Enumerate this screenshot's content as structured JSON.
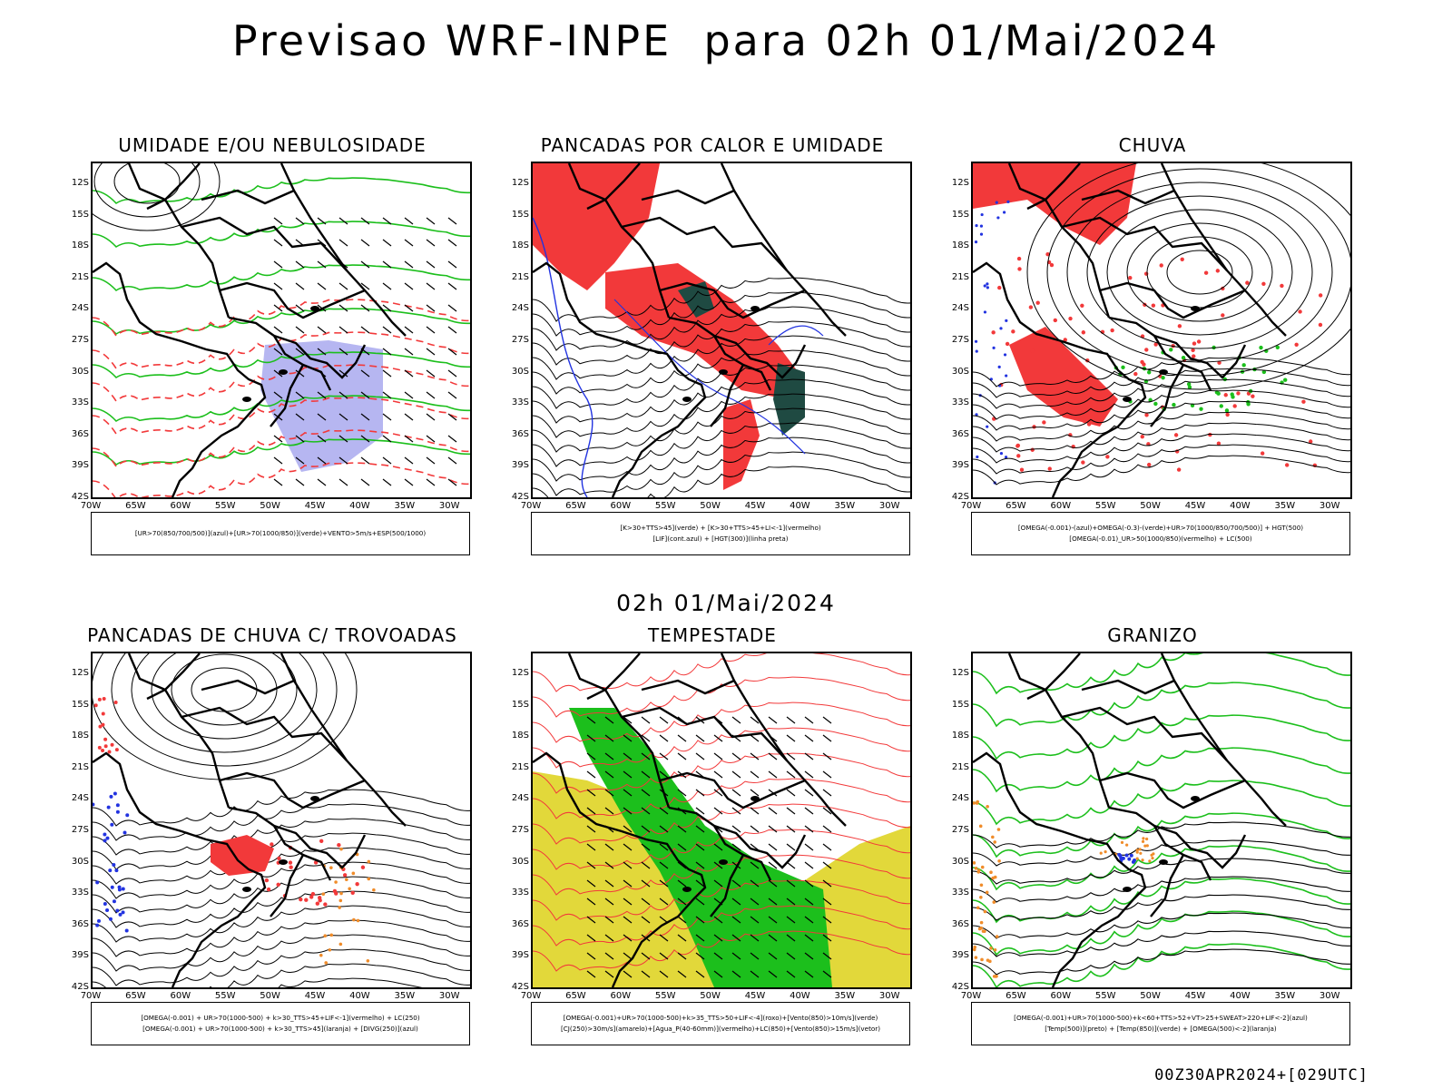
{
  "title": "Previsao WRF-INPE  para 02h 01/Mai/2024",
  "mid_title": "02h 01/Mai/2024",
  "footer": "00Z30APR2024+[029UTC]",
  "lat_labels": [
    "12S",
    "15S",
    "18S",
    "21S",
    "24S",
    "27S",
    "30S",
    "33S",
    "36S",
    "39S",
    "42S"
  ],
  "lon_labels": [
    "70W",
    "65W",
    "60W",
    "55W",
    "50W",
    "45W",
    "40W",
    "35W",
    "30W"
  ],
  "colors": {
    "red": "#f2393a",
    "green": "#1cbf1c",
    "blue": "#2233e0",
    "yellow": "#e2d83a",
    "dark_teal": "#1f4a42",
    "lavender": "#a9a9ee",
    "orange": "#f08c2a"
  },
  "panels": [
    {
      "title": "UMIDADE E/OU NEBULOSIDADE",
      "legend": [
        "[UR>70(850/700/500)](azul)+[UR>70(1000/850)](verde)+VENTO>5m/s+ESP(500/1000)"
      ]
    },
    {
      "title": "PANCADAS POR CALOR E UMIDADE",
      "legend": [
        "[K>30+TTS>45](verde) + [K>30+TTS>45+LI<-1](vermelho)",
        "[LIF](cont.azul) + [HGT(300)](linha preta)"
      ]
    },
    {
      "title": "CHUVA",
      "legend": [
        "[OMEGA(-0.001)-(azul)+OMEGA(-0.3)-(verde)+UR>70(1000/850/700/500)] + HGT(500)",
        "[OMEGA(-0.01)_UR>50(1000/850)(vermelho) + LC(500)"
      ]
    },
    {
      "title": "PANCADAS DE CHUVA C/ TROVOADAS",
      "legend": [
        "[OMEGA(-0.001) + UR>70(1000-500) + k>30_TTS>45+LIF<-1](vermelho) + LC(250)",
        "[OMEGA(-0.001) + UR>70(1000-500) + k>30_TTS>45](laranja) + [DIVG(250)](azul)"
      ]
    },
    {
      "title": "TEMPESTADE",
      "legend": [
        "[OMEGA(-0.001)+UR>70(1000-500)+k>35_TTS>50+LIF<-4](roxo)+[Vento(850)>10m/s](verde)",
        "[CJ(250)>30m/s](amarelo)+[Agua_P(40-60mm)](vermelho)+LC(850)+[Vento(850)>15m/s](vetor)"
      ]
    },
    {
      "title": "GRANIZO",
      "legend": [
        "[OMEGA(-0.001)+UR>70(1000-500)+k<60+TTS>52+VT>25+SWEAT>220+LIF<-2](azul)",
        "[Temp(500)](preto) + [Temp(850)](verde) + [OMEGA(500)<-2](laranja)"
      ]
    }
  ]
}
